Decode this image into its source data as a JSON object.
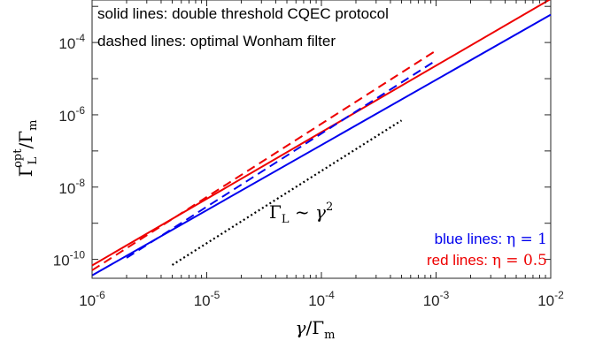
{
  "chart_data": {
    "type": "line",
    "x_scale": "log",
    "y_scale": "log",
    "xlim": [
      1e-06,
      0.01
    ],
    "ylim": [
      3e-11,
      0.0015
    ],
    "x_ticks": [
      {
        "base": "10",
        "exp": "-6"
      },
      {
        "base": "10",
        "exp": "-5"
      },
      {
        "base": "10",
        "exp": "-4"
      },
      {
        "base": "10",
        "exp": "-3"
      },
      {
        "base": "10",
        "exp": "-2"
      }
    ],
    "y_ticks": [
      {
        "base": "10",
        "exp": "-10"
      },
      {
        "base": "10",
        "exp": "-8"
      },
      {
        "base": "10",
        "exp": "-6"
      },
      {
        "base": "10",
        "exp": "-4"
      }
    ],
    "xlabel": {
      "g": "γ",
      "slash": "/",
      "G": "Γ",
      "sub": "m"
    },
    "ylabel": {
      "G": "Γ",
      "sub": "L",
      "sup": "opt",
      "slash": "/Γ",
      "sub2": "m"
    },
    "annotations": {
      "solid": "solid lines: double threshold CQEC protocol",
      "dashed": "dashed lines: optimal Wonham filter",
      "scaling": {
        "G": "Γ",
        "sub": "L",
        "rest": " ~ γ",
        "exp": "2"
      },
      "blue": {
        "text": "blue lines: ",
        "math": "η = 1"
      },
      "red": {
        "text": "red lines: ",
        "math": "η = 0.5"
      }
    },
    "colors": {
      "blue": "#0000ee",
      "red": "#ee0000",
      "reference": "#000000"
    },
    "series": [
      {
        "color": "red",
        "style": "solid",
        "x": [
          1e-06,
          0.01
        ],
        "y": [
          6.8e-11,
          0.0016
        ]
      },
      {
        "color": "blue",
        "style": "solid",
        "x": [
          1e-06,
          0.01
        ],
        "y": [
          3.6e-11,
          0.00059
        ]
      },
      {
        "color": "red",
        "style": "dashed",
        "x": [
          1e-06,
          0.001
        ],
        "y": [
          5e-11,
          6e-05
        ]
      },
      {
        "color": "blue",
        "style": "dashed",
        "x": [
          2e-06,
          0.001
        ],
        "y": [
          1.1e-10,
          3.2e-05
        ]
      },
      {
        "color": "reference",
        "style": "dotted",
        "x": [
          5e-06,
          0.0005
        ],
        "y": [
          7e-11,
          7e-07
        ]
      }
    ]
  }
}
